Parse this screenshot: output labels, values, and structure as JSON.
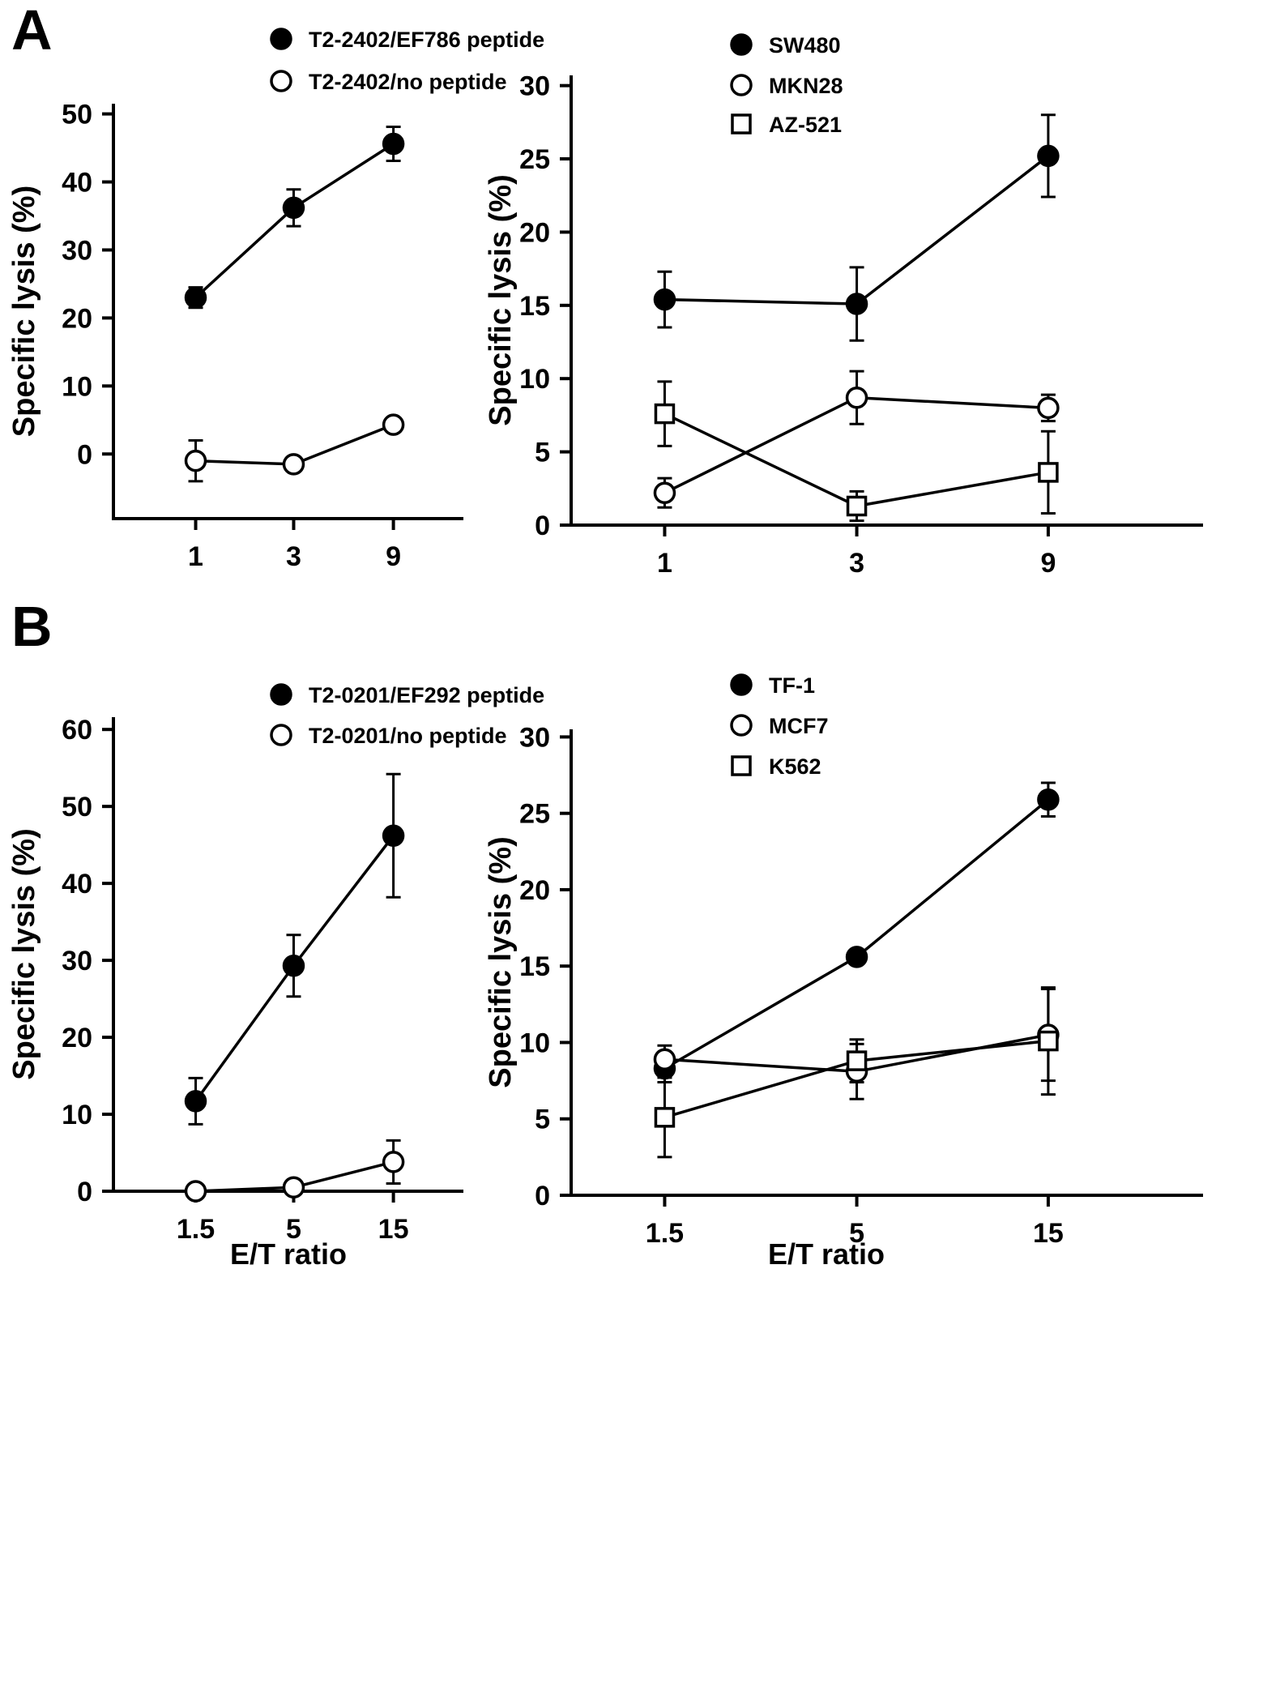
{
  "figure": {
    "panels": [
      {
        "label": "A"
      },
      {
        "label": "B"
      }
    ]
  },
  "colors": {
    "line": "#000000",
    "background": "#ffffff",
    "marker_fill": "#000000",
    "marker_open_fill": "#ffffff"
  },
  "chart_data": [
    {
      "id": "a-left",
      "type": "line",
      "title": "",
      "xlabel": "",
      "ylabel": "Specific lysis (%)",
      "x_categories": [
        "1",
        "3",
        "9"
      ],
      "yticks": [
        0,
        10,
        20,
        30,
        40,
        50
      ],
      "ylim": [
        -9.5,
        51.5
      ],
      "error_bars": true,
      "legend_position": "top",
      "series": [
        {
          "name": "T2-2402/EF786 peptide",
          "marker": "filled-circle",
          "values": [
            23,
            36.2,
            45.6
          ],
          "errors": [
            1.5,
            2.7,
            2.5
          ]
        },
        {
          "name": "T2-2402/no peptide",
          "marker": "open-circle",
          "values": [
            -1,
            -1.5,
            4.3
          ],
          "errors": [
            3,
            1,
            1
          ]
        }
      ]
    },
    {
      "id": "a-right",
      "type": "line",
      "title": "",
      "xlabel": "",
      "ylabel": "Specific lysis (%)",
      "x_categories": [
        "1",
        "3",
        "9"
      ],
      "yticks": [
        0,
        5,
        10,
        15,
        20,
        25,
        30
      ],
      "ylim": [
        0,
        30.7
      ],
      "error_bars": true,
      "legend_position": "top",
      "series": [
        {
          "name": "SW480",
          "marker": "filled-circle",
          "values": [
            15.4,
            15.1,
            25.2
          ],
          "errors": [
            1.9,
            2.5,
            2.8
          ]
        },
        {
          "name": "MKN28",
          "marker": "open-circle",
          "values": [
            2.2,
            8.7,
            8.0
          ],
          "errors": [
            1.0,
            1.8,
            0.9
          ]
        },
        {
          "name": "AZ-521",
          "marker": "open-square",
          "values": [
            7.6,
            1.3,
            3.6
          ],
          "errors": [
            2.2,
            1.0,
            2.8
          ]
        }
      ]
    },
    {
      "id": "b-left",
      "type": "line",
      "title": "",
      "xlabel": "E/T ratio",
      "ylabel": "Specific lysis (%)",
      "x_categories": [
        "1.5",
        "5",
        "15"
      ],
      "yticks": [
        0,
        10,
        20,
        30,
        40,
        50,
        60
      ],
      "ylim": [
        0,
        61.6
      ],
      "error_bars": true,
      "legend_position": "top",
      "series": [
        {
          "name": "T2-0201/EF292 peptide",
          "marker": "filled-circle",
          "values": [
            11.7,
            29.3,
            46.2
          ],
          "errors": [
            3.0,
            4.0,
            8.0
          ]
        },
        {
          "name": "T2-0201/no peptide",
          "marker": "open-circle",
          "values": [
            0,
            0.5,
            3.8
          ],
          "errors": [
            0,
            0,
            2.8
          ]
        }
      ]
    },
    {
      "id": "b-right",
      "type": "line",
      "title": "",
      "xlabel": "E/T ratio",
      "ylabel": "Specific lysis (%)",
      "x_categories": [
        "1.5",
        "5",
        "15"
      ],
      "yticks": [
        0,
        5,
        10,
        15,
        20,
        25,
        30
      ],
      "ylim": [
        0,
        30.5
      ],
      "error_bars": true,
      "legend_position": "top",
      "series": [
        {
          "name": "TF-1",
          "marker": "filled-circle",
          "values": [
            8.3,
            15.6,
            25.9
          ],
          "errors": [
            0.9,
            0.4,
            1.1
          ]
        },
        {
          "name": "MCF7",
          "marker": "open-circle",
          "values": [
            8.9,
            8.1,
            10.5
          ],
          "errors": [
            0.9,
            1.8,
            3.0
          ]
        },
        {
          "name": "K562",
          "marker": "open-square",
          "values": [
            5.1,
            8.8,
            10.1
          ],
          "errors": [
            2.6,
            1.4,
            3.5
          ]
        }
      ]
    }
  ]
}
